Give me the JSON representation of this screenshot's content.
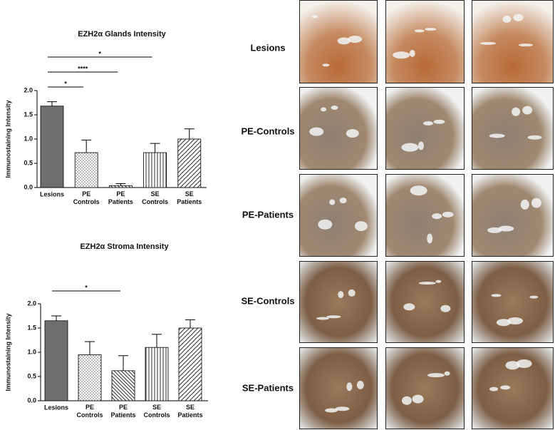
{
  "chart_data": [
    {
      "type": "bar",
      "title": "EZH2α Glands Intensity",
      "y_label": "Immunostaining Intensity",
      "categories": [
        "Lesions",
        "PE Controls",
        "PE Patients",
        "SE Controls",
        "SE Patients"
      ],
      "values": [
        1.68,
        0.72,
        0.04,
        0.72,
        1.0
      ],
      "errors": [
        0.09,
        0.26,
        0.04,
        0.19,
        0.21
      ],
      "fills": [
        "solid",
        "dots",
        "backslash",
        "vertical",
        "slash"
      ],
      "color": "#6e6e6e",
      "ylim": [
        0,
        2
      ],
      "yticks": [
        {
          "value": 0,
          "label": "0.0"
        },
        {
          "value": 0.5,
          "label": "0.5"
        },
        {
          "value": 1,
          "label": "1.0"
        },
        {
          "value": 1.5,
          "label": "1.5"
        },
        {
          "value": 2,
          "label": "2.0"
        }
      ],
      "significance": [
        {
          "text": "*",
          "between": [
            0,
            3
          ]
        },
        {
          "text": "****",
          "between": [
            0,
            2
          ]
        },
        {
          "text": "*",
          "between": [
            0,
            1
          ]
        }
      ]
    },
    {
      "type": "bar",
      "title": "EZH2α Stroma Intensity",
      "y_label": "Immunostaining Intensity",
      "categories": [
        "Lesions",
        "PE Controls",
        "PE Patients",
        "SE Controls",
        "SE Patients"
      ],
      "values": [
        1.65,
        0.95,
        0.62,
        1.1,
        1.5
      ],
      "errors": [
        0.1,
        0.27,
        0.31,
        0.27,
        0.17
      ],
      "fills": [
        "solid",
        "dots",
        "backslash",
        "vertical",
        "slash"
      ],
      "color": "#6e6e6e",
      "ylim": [
        0,
        2
      ],
      "yticks": [
        {
          "value": 0,
          "label": "0.0"
        },
        {
          "value": 0.5,
          "label": "0.5"
        },
        {
          "value": 1,
          "label": "1.0"
        },
        {
          "value": 1.5,
          "label": "1.5"
        },
        {
          "value": 2,
          "label": "2.0"
        }
      ],
      "significance": [
        {
          "text": "*",
          "between": [
            0,
            2
          ]
        }
      ]
    }
  ],
  "image_panel": {
    "row_labels": [
      "Lesions",
      "PE-Controls",
      "PE-Patients",
      "SE-Controls",
      "SE-Patients"
    ]
  }
}
